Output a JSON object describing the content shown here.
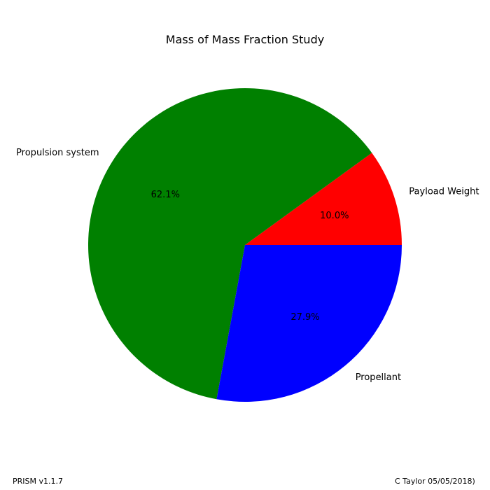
{
  "chart_data": {
    "type": "pie",
    "title": "Mass of Mass Fraction Study",
    "slices": [
      {
        "label": "Payload Weight",
        "value": 10.0,
        "pct_label": "10.0%",
        "color": "#ff0000"
      },
      {
        "label": "Propulsion system",
        "value": 62.1,
        "pct_label": "62.1%",
        "color": "#008000"
      },
      {
        "label": "Propellant",
        "value": 27.9,
        "pct_label": "27.9%",
        "color": "#0000ff"
      }
    ],
    "start_angle_deg": 0,
    "direction": "counterclockwise",
    "legend": "none"
  },
  "footer": {
    "left": "PRISM v1.1.7",
    "right": "C Taylor 05/05/2018)"
  }
}
